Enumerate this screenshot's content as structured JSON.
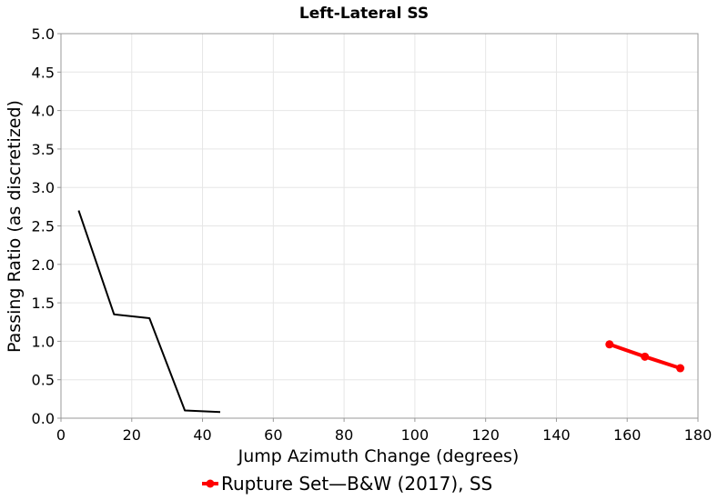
{
  "chart_data": {
    "type": "line",
    "title": "Left-Lateral SS",
    "xlabel": "Jump Azimuth Change (degrees)",
    "ylabel": "Passing Ratio (as discretized)",
    "xlim": [
      0,
      180
    ],
    "ylim": [
      0,
      5
    ],
    "xticks": [
      0,
      20,
      40,
      60,
      80,
      100,
      120,
      140,
      160,
      180
    ],
    "yticks": [
      0.0,
      0.5,
      1.0,
      1.5,
      2.0,
      2.5,
      3.0,
      3.5,
      4.0,
      4.5,
      5.0
    ],
    "grid": true,
    "legend_position": "bottom",
    "series": [
      {
        "name": "",
        "color": "#000000",
        "marker": "none",
        "x": [
          5,
          15,
          25,
          35,
          45
        ],
        "y": [
          2.7,
          1.35,
          1.3,
          0.1,
          0.08
        ]
      },
      {
        "name": "Rupture Set—B&W (2017), SS",
        "color": "#ff0000",
        "marker": "circle",
        "x": [
          155,
          165,
          175
        ],
        "y": [
          0.96,
          0.8,
          0.65
        ]
      }
    ]
  }
}
